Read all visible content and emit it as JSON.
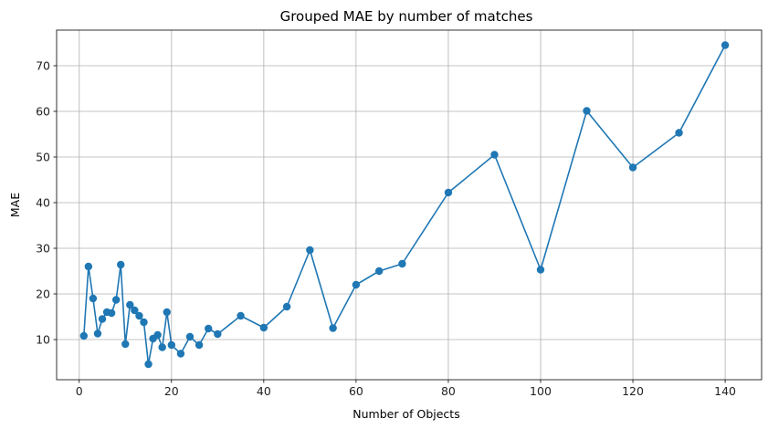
{
  "chart_data": {
    "type": "line",
    "title": "Grouped MAE by number of matches",
    "xlabel": "Number of Objects",
    "ylabel": "MAE",
    "xlim": [
      -4.9,
      147.9
    ],
    "ylim": [
      1.2,
      77.8
    ],
    "xticks": [
      0,
      20,
      40,
      60,
      80,
      100,
      120,
      140
    ],
    "yticks": [
      10,
      20,
      30,
      40,
      50,
      60,
      70
    ],
    "grid": true,
    "series": [
      {
        "color": "#1f77b4",
        "marker": "circle",
        "points": [
          {
            "x": 1,
            "y": 10.8
          },
          {
            "x": 2,
            "y": 26.0
          },
          {
            "x": 3,
            "y": 19.0
          },
          {
            "x": 4,
            "y": 11.3
          },
          {
            "x": 5,
            "y": 14.5
          },
          {
            "x": 6,
            "y": 16.0
          },
          {
            "x": 7,
            "y": 15.8
          },
          {
            "x": 8,
            "y": 18.7
          },
          {
            "x": 9,
            "y": 26.4
          },
          {
            "x": 10,
            "y": 9.0
          },
          {
            "x": 11,
            "y": 17.6
          },
          {
            "x": 12,
            "y": 16.4
          },
          {
            "x": 13,
            "y": 15.2
          },
          {
            "x": 14,
            "y": 13.8
          },
          {
            "x": 15,
            "y": 4.6
          },
          {
            "x": 16,
            "y": 10.2
          },
          {
            "x": 17,
            "y": 11.0
          },
          {
            "x": 18,
            "y": 8.3
          },
          {
            "x": 19,
            "y": 16.0
          },
          {
            "x": 20,
            "y": 8.8
          },
          {
            "x": 22,
            "y": 6.9
          },
          {
            "x": 24,
            "y": 10.6
          },
          {
            "x": 26,
            "y": 8.8
          },
          {
            "x": 28,
            "y": 12.4
          },
          {
            "x": 30,
            "y": 11.2
          },
          {
            "x": 35,
            "y": 15.2
          },
          {
            "x": 40,
            "y": 12.6
          },
          {
            "x": 45,
            "y": 17.2
          },
          {
            "x": 50,
            "y": 29.6
          },
          {
            "x": 55,
            "y": 12.5
          },
          {
            "x": 60,
            "y": 22.0
          },
          {
            "x": 65,
            "y": 25.0
          },
          {
            "x": 70,
            "y": 26.6
          },
          {
            "x": 80,
            "y": 42.2
          },
          {
            "x": 90,
            "y": 50.5
          },
          {
            "x": 100,
            "y": 25.3
          },
          {
            "x": 110,
            "y": 60.1
          },
          {
            "x": 120,
            "y": 47.7
          },
          {
            "x": 130,
            "y": 55.3
          },
          {
            "x": 140,
            "y": 74.5
          }
        ]
      }
    ]
  }
}
